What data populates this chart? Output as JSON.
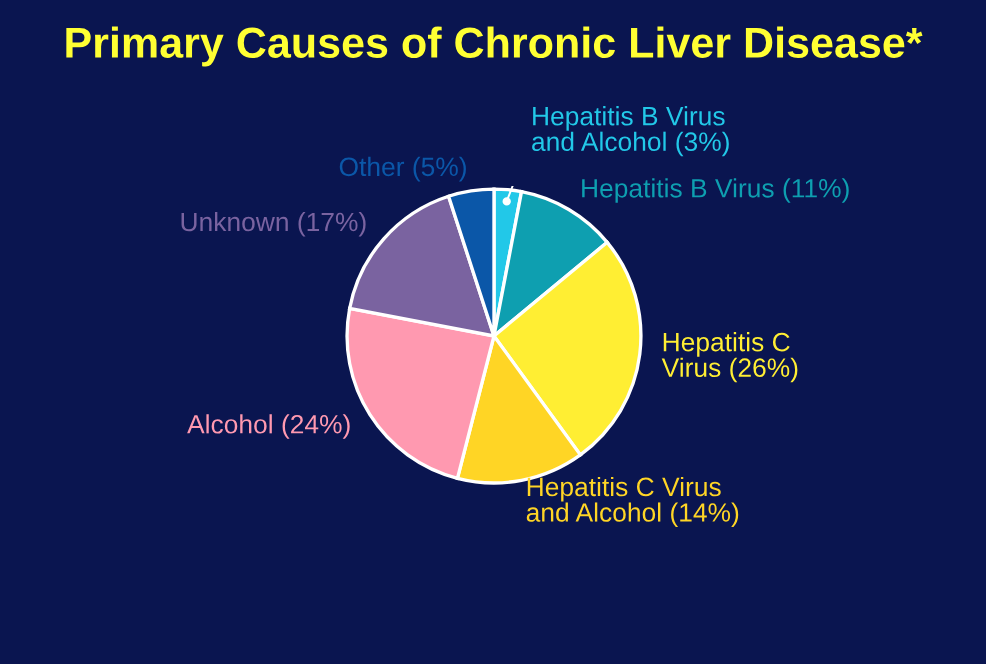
{
  "chart_data": {
    "type": "pie",
    "title": "Primary Causes of Chronic Liver Disease*",
    "categories": [
      "Hepatitis B Virus\nand Alcohol",
      "Hepatitis B Virus",
      "Hepatitis C\nVirus",
      "Hepatitis C Virus\nand Alcohol",
      "Alcohol",
      "Unknown",
      "Other"
    ],
    "values": [
      3,
      11,
      26,
      14,
      24,
      17,
      5
    ],
    "value_labels": [
      "(3%)",
      "(11%)",
      "(26%)",
      "(14%)",
      "(24%)",
      "(17%)",
      "(5%)"
    ],
    "colors": [
      "#22c8e8",
      "#0e9fb0",
      "#ffee33",
      "#ffd525",
      "#ff99b0",
      "#7a63a0",
      "#0b57a8"
    ]
  }
}
